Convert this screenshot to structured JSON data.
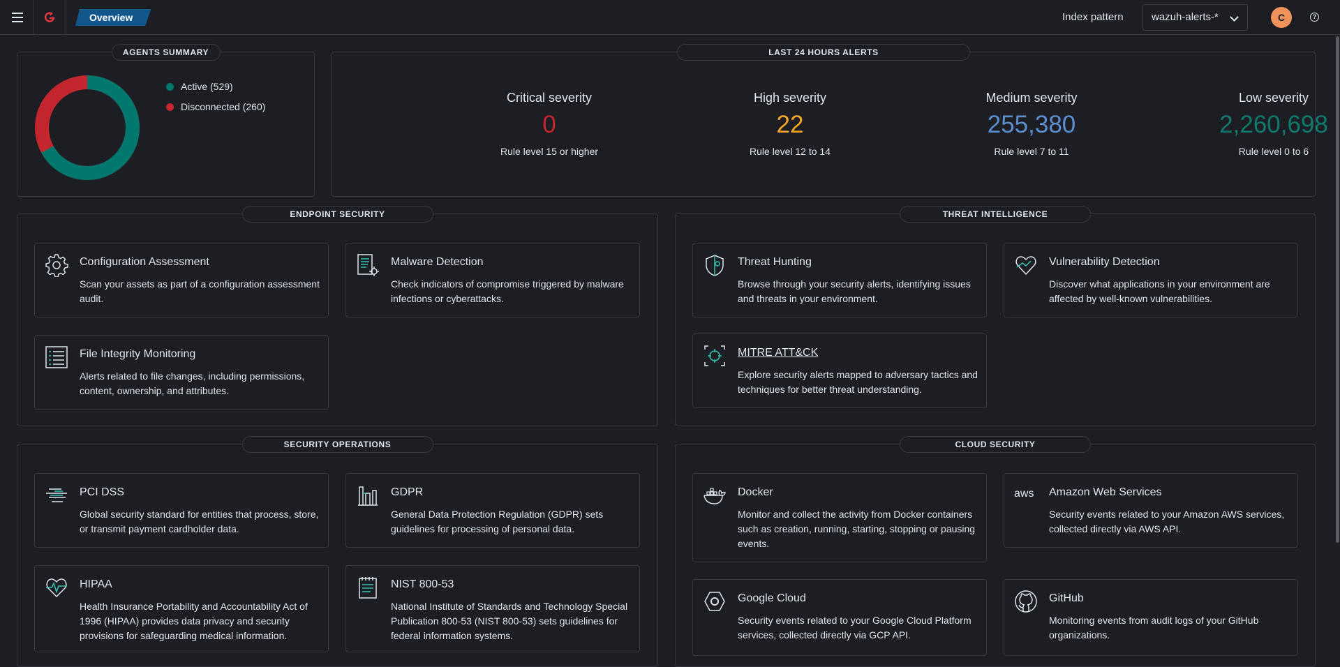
{
  "header": {
    "breadcrumb": "Overview",
    "index_pattern_label": "Index pattern",
    "index_pattern_value": "wazuh-alerts-*",
    "avatar_initial": "C",
    "help_glyph": "?"
  },
  "agents_summary": {
    "title": "AGENTS SUMMARY",
    "active_label": "Active (529)",
    "disconnected_label": "Disconnected (260)",
    "active_count": 529,
    "disconnected_count": 260,
    "active_color": "#00786e",
    "disconnected_color": "#c4262e"
  },
  "alerts": {
    "title": "LAST 24 HOURS ALERTS",
    "items": [
      {
        "label": "Critical severity",
        "value": "0",
        "sub": "Rule level 15 or higher",
        "color": "#c4262e"
      },
      {
        "label": "High severity",
        "value": "22",
        "sub": "Rule level 12 to 14",
        "color": "#f5a623"
      },
      {
        "label": "Medium severity",
        "value": "255,380",
        "sub": "Rule level 7 to 11",
        "color": "#5b8fcf"
      },
      {
        "label": "Low severity",
        "value": "2,260,698",
        "sub": "Rule level 0 to 6",
        "color": "#0e7a6c"
      }
    ]
  },
  "endpoint": {
    "title": "ENDPOINT SECURITY",
    "cards": [
      {
        "icon": "gear-icon",
        "title": "Configuration Assessment",
        "desc": "Scan your assets as part of a configuration assessment audit."
      },
      {
        "icon": "malware-doc-icon",
        "title": "Malware Detection",
        "desc": "Check indicators of compromise triggered by malware infections or cyberattacks."
      },
      {
        "icon": "file-list-icon",
        "title": "File Integrity Monitoring",
        "desc": "Alerts related to file changes, including permissions, content, ownership, and attributes."
      }
    ]
  },
  "threat": {
    "title": "THREAT INTELLIGENCE",
    "cards": [
      {
        "icon": "shield-hunt-icon",
        "title": "Threat Hunting",
        "desc": "Browse through your security alerts, identifying issues and threats in your environment."
      },
      {
        "icon": "heart-check-icon",
        "title": "Vulnerability Detection",
        "desc": "Discover what applications in your environment are affected by well-known vulnerabilities."
      },
      {
        "icon": "crosshair-icon",
        "title": "MITRE ATT&CK",
        "desc": "Explore security alerts mapped to adversary tactics and techniques for better threat understanding."
      }
    ]
  },
  "secops": {
    "title": "SECURITY OPERATIONS",
    "cards": [
      {
        "icon": "pci-card-icon",
        "title": "PCI DSS",
        "desc": "Global security standard for entities that process, store, or transmit payment cardholder data."
      },
      {
        "icon": "gdpr-building-icon",
        "title": "GDPR",
        "desc": "General Data Protection Regulation (GDPR) sets guidelines for processing of personal data."
      },
      {
        "icon": "heartbeat-icon",
        "title": "HIPAA",
        "desc": "Health Insurance Portability and Accountability Act of 1996 (HIPAA) provides data privacy and security provisions for safeguarding medical information."
      },
      {
        "icon": "notepad-icon",
        "title": "NIST 800-53",
        "desc": "National Institute of Standards and Technology Special Publication 800-53 (NIST 800-53) sets guidelines for federal information systems."
      }
    ]
  },
  "cloud": {
    "title": "CLOUD SECURITY",
    "cards": [
      {
        "icon": "docker-icon",
        "title": "Docker",
        "desc": "Monitor and collect the activity from Docker containers such as creation, running, starting, stopping or pausing events."
      },
      {
        "icon": "aws-icon",
        "title": "Amazon Web Services",
        "desc": "Security events related to your Amazon AWS services, collected directly via AWS API.",
        "logo_text": "aws"
      },
      {
        "icon": "google-cloud-icon",
        "title": "Google Cloud",
        "desc": "Security events related to your Google Cloud Platform services, collected directly via GCP API."
      },
      {
        "icon": "github-icon",
        "title": "GitHub",
        "desc": "Monitoring events from audit logs of your GitHub organizations."
      }
    ]
  }
}
